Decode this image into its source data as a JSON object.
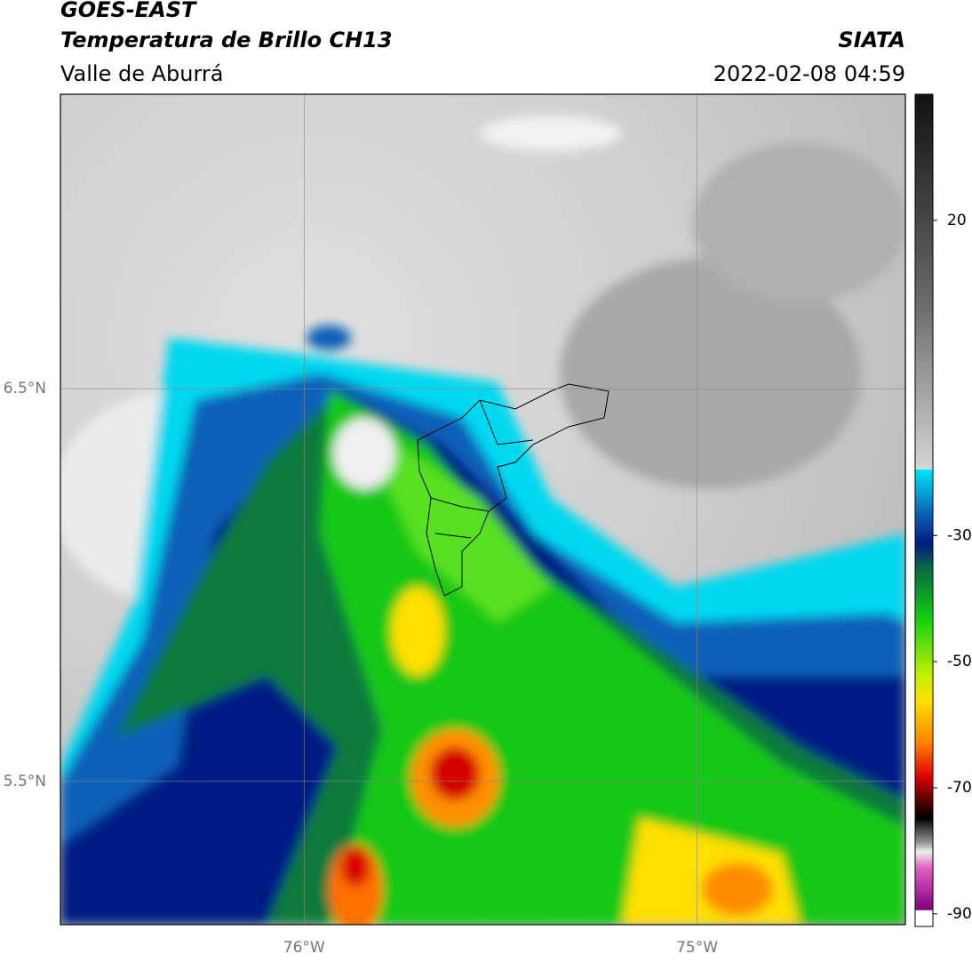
{
  "header": {
    "title": "GOES-EAST",
    "subtitle": "Temperatura de Brillo CH13",
    "region": "Valle de Aburrá",
    "source": "SIATA",
    "datetime": "2022-02-08 04:59"
  },
  "map": {
    "xlim": [
      -76.62,
      -74.47
    ],
    "ylim": [
      5.135,
      7.25
    ],
    "xticks": [
      {
        "value": -76,
        "label": "76°W"
      },
      {
        "value": -75,
        "label": "75°W"
      }
    ],
    "yticks": [
      {
        "value": 6.5,
        "label": "6.5°N"
      },
      {
        "value": 5.5,
        "label": "5.5°N"
      }
    ],
    "grid": true
  },
  "colorbar": {
    "range": [
      -92,
      40
    ],
    "ticks": [
      20,
      -30,
      -50,
      -70,
      -90
    ]
  }
}
